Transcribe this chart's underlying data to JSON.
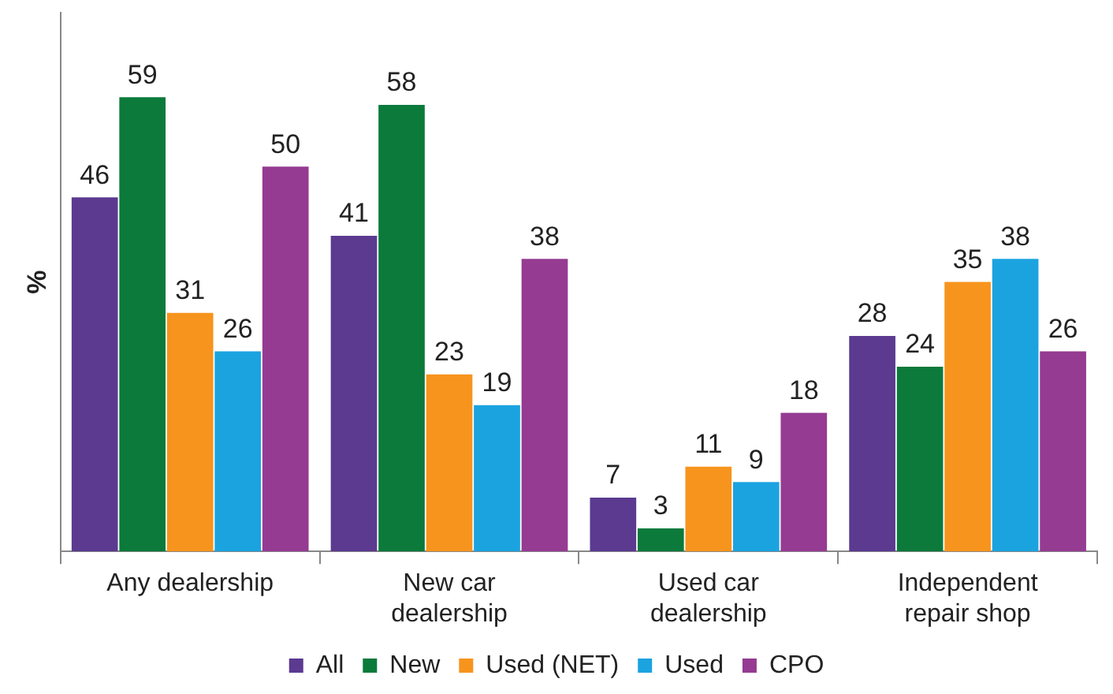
{
  "chart_data": {
    "type": "bar",
    "ylabel": "%",
    "categories": [
      "Any dealership",
      "New car dealership",
      "Used car dealership",
      "Independent repair shop"
    ],
    "series": [
      {
        "name": "All",
        "color": "#5b3a90",
        "values": [
          46,
          41,
          7,
          28
        ]
      },
      {
        "name": "New",
        "color": "#0b7a3b",
        "values": [
          59,
          58,
          3,
          24
        ]
      },
      {
        "name": "Used (NET)",
        "color": "#f7941d",
        "values": [
          31,
          23,
          11,
          35
        ]
      },
      {
        "name": "Used",
        "color": "#1ba3e0",
        "values": [
          26,
          19,
          9,
          38
        ]
      },
      {
        "name": "CPO",
        "color": "#953b92",
        "values": [
          50,
          38,
          18,
          26
        ]
      }
    ],
    "data_labels": true,
    "legend": "bottom",
    "grid": false,
    "tick_labels": "x"
  }
}
